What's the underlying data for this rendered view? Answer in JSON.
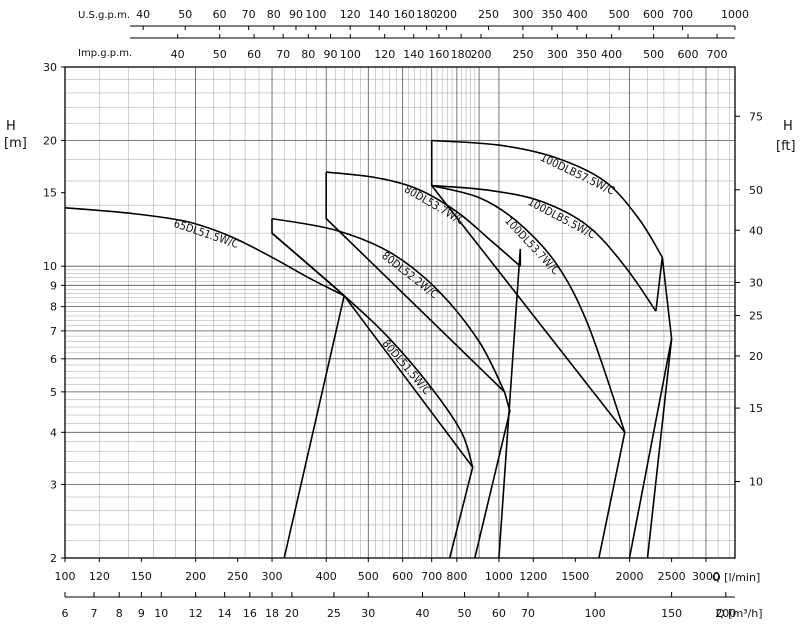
{
  "chart_data": {
    "type": "line",
    "x_axis": {
      "label": "Q [l/min]",
      "scale": "log",
      "range": [
        100,
        3500
      ],
      "ticks": [
        100,
        120,
        150,
        200,
        250,
        300,
        400,
        500,
        600,
        700,
        800,
        1000,
        1200,
        1500,
        2000,
        2500,
        3000
      ]
    },
    "x_axis_m3h": {
      "label": "Q [m³/h]",
      "ticks": [
        6,
        7,
        8,
        9,
        10,
        12,
        14,
        16,
        18,
        20,
        25,
        30,
        40,
        50,
        60,
        70,
        100,
        150,
        200
      ]
    },
    "x_axis_usgpm": {
      "label": "U.S.g.p.m.",
      "ticks": [
        40,
        50,
        60,
        70,
        80,
        90,
        100,
        120,
        140,
        160,
        180,
        200,
        250,
        300,
        350,
        400,
        500,
        600,
        700,
        1000
      ]
    },
    "x_axis_impgpm": {
      "label": "Imp.g.p.m.",
      "ticks": [
        40,
        50,
        60,
        70,
        80,
        90,
        100,
        120,
        140,
        160,
        180,
        200,
        250,
        300,
        350,
        400,
        500,
        600,
        700
      ]
    },
    "y_axis": {
      "label": "H",
      "unit": "[m]",
      "scale": "log",
      "range": [
        2,
        30
      ],
      "ticks": [
        2,
        3,
        4,
        5,
        6,
        7,
        8,
        9,
        10,
        15,
        20,
        30
      ]
    },
    "y_axis_ft": {
      "label": "H",
      "unit": "[ft]",
      "ticks": [
        10,
        15,
        20,
        25,
        30,
        40,
        50,
        75
      ]
    },
    "grid": true,
    "series": [
      {
        "name": "65DL51.5W/C",
        "label_text": "65DL51.5W/C",
        "points": [
          [
            100,
            13.8
          ],
          [
            140,
            13.4
          ],
          [
            190,
            12.8
          ],
          [
            240,
            11.8
          ],
          [
            300,
            10.5
          ],
          [
            370,
            9.3
          ],
          [
            440,
            8.5
          ]
        ],
        "envelope": [
          [
            300,
            13.0
          ],
          [
            300,
            12.0
          ],
          [
            440,
            8.5
          ],
          [
            320,
            2.0
          ]
        ]
      },
      {
        "name": "80DL51.5W/C",
        "label_text": "80DL51.5W/C",
        "points": [
          [
            300,
            12.0
          ],
          [
            440,
            8.5
          ],
          [
            560,
            6.7
          ],
          [
            700,
            5.1
          ],
          [
            820,
            4.0
          ],
          [
            870,
            3.3
          ]
        ],
        "envelope": [
          [
            440,
            8.5
          ],
          [
            870,
            3.3
          ],
          [
            770,
            2.0
          ]
        ]
      },
      {
        "name": "80DL52.2W/C",
        "label_text": "80DL52.2W/C",
        "points": [
          [
            300,
            13.0
          ],
          [
            420,
            12.2
          ],
          [
            560,
            10.8
          ],
          [
            720,
            8.8
          ],
          [
            900,
            6.6
          ],
          [
            1030,
            5.0
          ]
        ],
        "envelope": [
          [
            400,
            16.8
          ],
          [
            400,
            13.0
          ],
          [
            1030,
            5.0
          ],
          [
            1060,
            4.5
          ],
          [
            880,
            2.0
          ]
        ]
      },
      {
        "name": "80DL53.7W/C",
        "label_text": "80DL53.7W/C",
        "points": [
          [
            400,
            16.8
          ],
          [
            520,
            16.3
          ],
          [
            650,
            15.3
          ],
          [
            800,
            13.5
          ],
          [
            960,
            11.5
          ],
          [
            1120,
            10.0
          ]
        ],
        "envelope": [
          [
            1120,
            10.0
          ],
          [
            1120,
            11.0
          ],
          [
            1000,
            2.0
          ]
        ]
      },
      {
        "name": "100DL53.7W/C",
        "label_text": "100DL53.7W/C",
        "points": [
          [
            700,
            15.6
          ],
          [
            900,
            14.6
          ],
          [
            1100,
            12.8
          ],
          [
            1350,
            10.2
          ],
          [
            1600,
            7.3
          ],
          [
            1950,
            4.0
          ]
        ],
        "envelope": [
          [
            700,
            20.0
          ],
          [
            700,
            15.6
          ],
          [
            1950,
            4.0
          ],
          [
            1700,
            2.0
          ]
        ]
      },
      {
        "name": "100DLB5.5W/C",
        "label_text": "100DLB5.5W/C",
        "points": [
          [
            700,
            15.6
          ],
          [
            950,
            15.2
          ],
          [
            1250,
            14.3
          ],
          [
            1600,
            12.5
          ],
          [
            1950,
            10.0
          ],
          [
            2300,
            7.8
          ]
        ],
        "envelope": [
          [
            2300,
            7.8
          ],
          [
            2380,
            10.5
          ],
          [
            2500,
            6.7
          ],
          [
            2000,
            2.0
          ]
        ]
      },
      {
        "name": "100DLB57.5W/C",
        "label_text": "100DLB57.5W/C",
        "points": [
          [
            700,
            20.0
          ],
          [
            1000,
            19.5
          ],
          [
            1350,
            18.2
          ],
          [
            1750,
            16.0
          ],
          [
            2100,
            13.0
          ],
          [
            2380,
            10.5
          ]
        ],
        "envelope": [
          [
            2500,
            6.7
          ],
          [
            2200,
            2.0
          ]
        ]
      }
    ]
  }
}
